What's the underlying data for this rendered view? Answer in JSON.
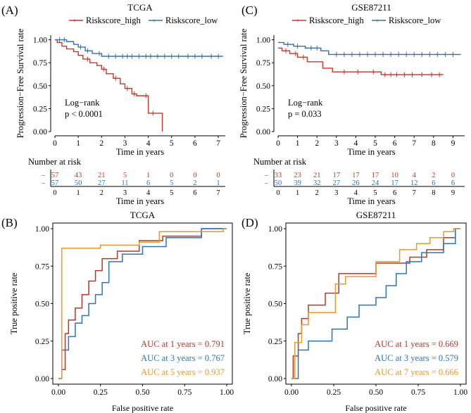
{
  "chart_data": [
    {
      "panel": "(A)",
      "type": "line",
      "subtype": "kaplan-meier",
      "title": "TCGA",
      "xlabel": "Time in years",
      "ylabel": "Progression−Free Survival rate",
      "xlim": [
        0,
        7.3
      ],
      "ylim": [
        0,
        1.05
      ],
      "xticks": [
        "0",
        "1",
        "2",
        "3",
        "4",
        "5",
        "6",
        "7"
      ],
      "yticks": [
        "0.00",
        "0.25",
        "0.50",
        "0.75",
        "1.00"
      ],
      "legend": [
        "Riskscore_high",
        "Riskscore_low"
      ],
      "annotation": [
        "Log−rank",
        "p < 0.0001"
      ],
      "series": [
        {
          "name": "Riskscore_high",
          "color": "#c0392b",
          "x": [
            0,
            0.1,
            0.3,
            0.5,
            0.8,
            1.0,
            1.2,
            1.5,
            1.8,
            2.0,
            2.2,
            2.5,
            2.8,
            3.0,
            3.3,
            3.5,
            4.0,
            4.6,
            4.6
          ],
          "y": [
            1.0,
            0.97,
            0.93,
            0.9,
            0.87,
            0.83,
            0.79,
            0.75,
            0.72,
            0.68,
            0.63,
            0.58,
            0.52,
            0.47,
            0.41,
            0.39,
            0.2,
            0.2,
            0.0
          ],
          "censor_x": [
            1.4,
            2.1,
            2.6,
            3.1,
            3.4,
            3.9,
            4.2
          ]
        },
        {
          "name": "Riskscore_low",
          "color": "#3a6ea5",
          "x": [
            0,
            0.5,
            0.8,
            1.0,
            1.3,
            1.6,
            2.0,
            7.2
          ],
          "y": [
            1.0,
            0.98,
            0.95,
            0.92,
            0.88,
            0.85,
            0.82,
            0.82
          ],
          "censor_x": [
            0.2,
            0.4,
            1.1,
            1.4,
            1.9,
            2.3,
            2.6,
            2.9,
            3.1,
            3.3,
            3.6,
            3.9,
            4.1,
            4.4,
            4.7,
            5.0,
            5.3,
            5.7,
            6.0,
            6.3,
            6.7,
            7.0
          ]
        }
      ],
      "risk_table": {
        "title": "Number at risk",
        "xlabel": "Time in years",
        "times": [
          "0",
          "1",
          "2",
          "3",
          "4",
          "5",
          "6",
          "7"
        ],
        "rows": [
          [
            "57",
            "43",
            "21",
            "5",
            "1",
            "0",
            "0",
            "0"
          ],
          [
            "57",
            "50",
            "27",
            "11",
            "6",
            "5",
            "2",
            "1"
          ]
        ]
      }
    },
    {
      "panel": "(C)",
      "type": "line",
      "subtype": "kaplan-meier",
      "title": "GSE87211",
      "xlabel": "Time in years",
      "ylabel": "Progression−Free Survival rate",
      "xlim": [
        0,
        9.6
      ],
      "ylim": [
        0,
        1.05
      ],
      "xticks": [
        "0",
        "1",
        "2",
        "3",
        "4",
        "5",
        "6",
        "7",
        "8",
        "9"
      ],
      "yticks": [
        "0.00",
        "0.25",
        "0.50",
        "0.75",
        "1.00"
      ],
      "legend": [
        "Riskscore_high",
        "Riskscore_low"
      ],
      "annotation": [
        "Log−rank",
        "p = 0.033"
      ],
      "series": [
        {
          "name": "Riskscore_high",
          "color": "#c0392b",
          "x": [
            0,
            0.2,
            0.6,
            1.0,
            1.5,
            2.3,
            2.8,
            5.3,
            8.5
          ],
          "y": [
            0.91,
            0.88,
            0.85,
            0.81,
            0.76,
            0.69,
            0.65,
            0.62,
            0.62
          ],
          "censor_x": [
            0.4,
            0.9,
            1.3,
            3.4,
            4.1,
            4.9,
            5.5,
            5.8,
            6.1,
            6.5,
            6.9,
            7.4,
            7.9,
            8.3
          ]
        },
        {
          "name": "Riskscore_low",
          "color": "#3a6ea5",
          "x": [
            0,
            0.3,
            0.8,
            1.4,
            2.2,
            2.6,
            9.4
          ],
          "y": [
            0.97,
            0.95,
            0.93,
            0.91,
            0.88,
            0.84,
            0.84
          ],
          "censor_x": [
            0.5,
            1.0,
            1.7,
            2.0,
            3.0,
            3.4,
            3.8,
            4.2,
            4.6,
            5.0,
            5.4,
            5.8,
            6.2,
            6.6,
            7.0,
            7.4,
            7.8,
            8.2,
            8.6,
            9.0
          ]
        }
      ],
      "risk_table": {
        "title": "Number at risk",
        "xlabel": "Time in years",
        "times": [
          "0",
          "1",
          "2",
          "3",
          "4",
          "5",
          "6",
          "7",
          "8",
          "9"
        ],
        "rows": [
          [
            "33",
            "23",
            "21",
            "17",
            "17",
            "17",
            "10",
            "4",
            "2",
            "0"
          ],
          [
            "50",
            "39",
            "32",
            "27",
            "26",
            "24",
            "17",
            "12",
            "6",
            "6"
          ]
        ]
      }
    },
    {
      "panel": "(B)",
      "type": "line",
      "subtype": "roc",
      "title": "TCGA",
      "xlabel": "False positive rate",
      "ylabel": "True positive rate",
      "xlim": [
        0,
        1
      ],
      "ylim": [
        0,
        1
      ],
      "xticks": [
        "0.00",
        "0.25",
        "0.50",
        "0.75",
        "1.00"
      ],
      "yticks": [
        "0.00",
        "0.25",
        "0.50",
        "0.75",
        "1.00"
      ],
      "series": [
        {
          "name": "AUC at 1 years = 0.791",
          "color": "#b03a2e",
          "x": [
            0,
            0.02,
            0.02,
            0.04,
            0.04,
            0.06,
            0.06,
            0.1,
            0.1,
            0.14,
            0.14,
            0.18,
            0.18,
            0.22,
            0.22,
            0.26,
            0.26,
            0.35,
            0.35,
            0.48,
            0.48,
            0.62,
            0.62,
            0.85,
            0.85,
            1.0
          ],
          "y": [
            0,
            0,
            0.06,
            0.06,
            0.3,
            0.3,
            0.39,
            0.39,
            0.47,
            0.47,
            0.56,
            0.56,
            0.65,
            0.65,
            0.72,
            0.72,
            0.8,
            0.8,
            0.85,
            0.85,
            0.92,
            0.92,
            0.95,
            0.95,
            1.0,
            1.0
          ]
        },
        {
          "name": "AUC at 3 years = 0.767",
          "color": "#2e75b6",
          "x": [
            0,
            0.02,
            0.02,
            0.06,
            0.06,
            0.1,
            0.1,
            0.14,
            0.14,
            0.18,
            0.18,
            0.22,
            0.22,
            0.26,
            0.26,
            0.3,
            0.3,
            0.38,
            0.38,
            0.5,
            0.5,
            0.64,
            0.64,
            0.85,
            0.85,
            1.0
          ],
          "y": [
            0,
            0,
            0.19,
            0.19,
            0.28,
            0.28,
            0.37,
            0.37,
            0.42,
            0.42,
            0.5,
            0.5,
            0.56,
            0.56,
            0.64,
            0.64,
            0.78,
            0.78,
            0.83,
            0.83,
            0.88,
            0.88,
            0.94,
            0.94,
            1.0,
            1.0
          ]
        },
        {
          "name": "AUC at 5 years = 0.937",
          "color": "#e69a2e",
          "x": [
            0,
            0.02,
            0.02,
            0.25,
            0.25,
            0.48,
            0.48,
            0.6,
            0.6,
            0.98,
            0.98,
            1.0
          ],
          "y": [
            0,
            0,
            0.87,
            0.87,
            0.89,
            0.89,
            0.91,
            0.91,
            0.98,
            0.98,
            1.0,
            1.0
          ]
        }
      ]
    },
    {
      "panel": "(D)",
      "type": "line",
      "subtype": "roc",
      "title": "GSE87211",
      "xlabel": "False positive rate",
      "ylabel": "True positive rate",
      "xlim": [
        0,
        1
      ],
      "ylim": [
        0,
        1
      ],
      "xticks": [
        "0.00",
        "0.25",
        "0.50",
        "0.75",
        "1.00"
      ],
      "yticks": [
        "0.00",
        "0.25",
        "0.50",
        "0.75",
        "1.00"
      ],
      "series": [
        {
          "name": "AUC at 1 years = 0.669",
          "color": "#b03a2e",
          "x": [
            0,
            0.01,
            0.01,
            0.04,
            0.04,
            0.06,
            0.06,
            0.1,
            0.1,
            0.2,
            0.2,
            0.28,
            0.28,
            0.5,
            0.5,
            0.7,
            0.7,
            0.8,
            0.8,
            0.9,
            0.9,
            0.97,
            0.97,
            1.0
          ],
          "y": [
            0,
            0,
            0.15,
            0.15,
            0.3,
            0.3,
            0.4,
            0.4,
            0.49,
            0.49,
            0.57,
            0.57,
            0.7,
            0.7,
            0.77,
            0.77,
            0.81,
            0.81,
            0.86,
            0.86,
            0.94,
            0.94,
            1.0,
            1.0
          ]
        },
        {
          "name": "AUC at 3 years = 0.579",
          "color": "#2e75b6",
          "x": [
            0,
            0.04,
            0.04,
            0.1,
            0.1,
            0.24,
            0.24,
            0.33,
            0.33,
            0.4,
            0.4,
            0.5,
            0.5,
            0.56,
            0.56,
            0.62,
            0.62,
            0.68,
            0.68,
            0.77,
            0.77,
            0.9,
            0.9,
            0.97,
            0.97,
            1.0
          ],
          "y": [
            0,
            0,
            0.19,
            0.19,
            0.25,
            0.25,
            0.33,
            0.33,
            0.41,
            0.41,
            0.49,
            0.49,
            0.54,
            0.54,
            0.62,
            0.62,
            0.7,
            0.7,
            0.78,
            0.78,
            0.84,
            0.84,
            0.9,
            0.9,
            1.0,
            1.0
          ]
        },
        {
          "name": "AUC at 7 years = 0.666",
          "color": "#e69a2e",
          "x": [
            0,
            0.02,
            0.02,
            0.06,
            0.06,
            0.1,
            0.1,
            0.26,
            0.26,
            0.32,
            0.32,
            0.5,
            0.5,
            0.64,
            0.64,
            0.74,
            0.74,
            0.82,
            0.82,
            0.9,
            0.9,
            0.96,
            0.96,
            1.0
          ],
          "y": [
            0,
            0,
            0.24,
            0.24,
            0.36,
            0.36,
            0.44,
            0.44,
            0.63,
            0.63,
            0.68,
            0.68,
            0.78,
            0.78,
            0.86,
            0.86,
            0.9,
            0.9,
            0.94,
            0.94,
            0.98,
            0.98,
            1.0,
            1.0
          ]
        }
      ]
    }
  ]
}
